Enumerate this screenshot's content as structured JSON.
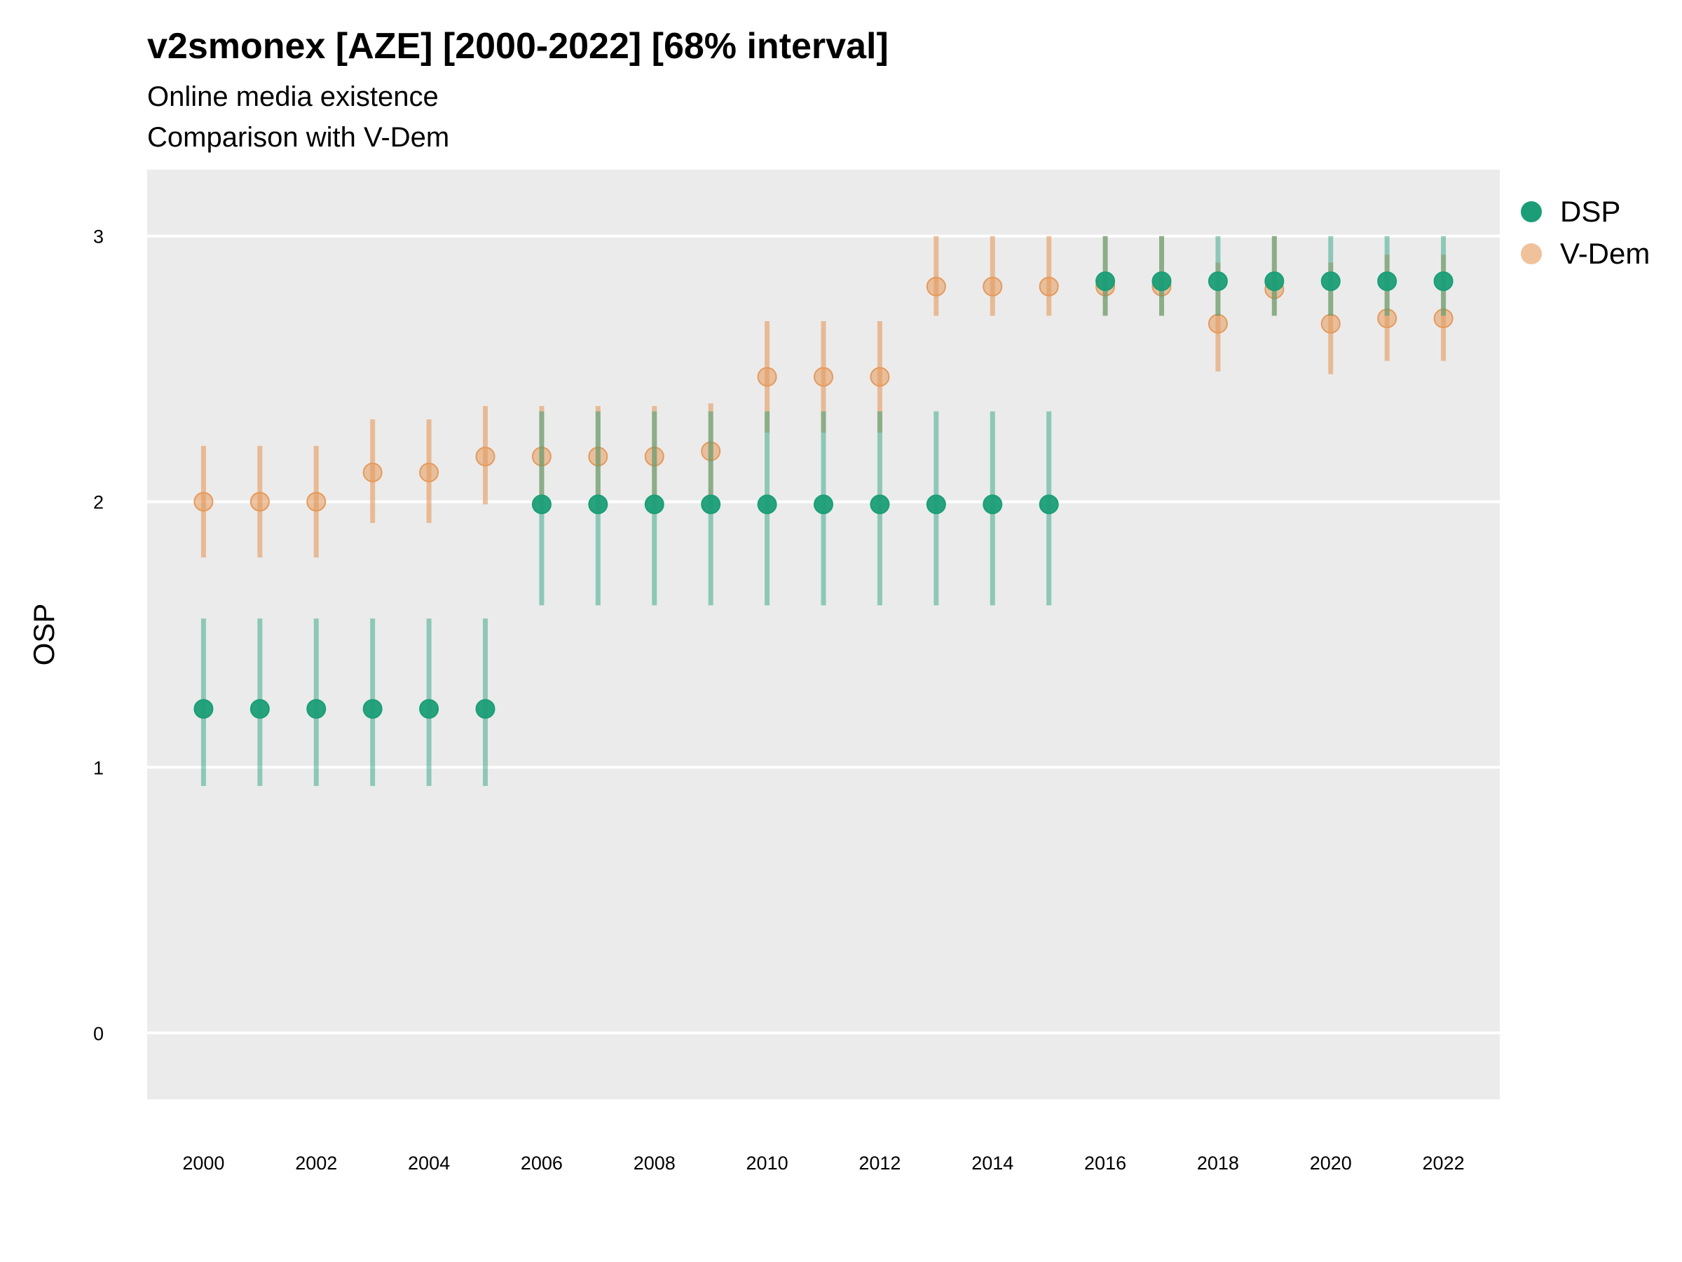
{
  "chart_data": {
    "type": "scatter",
    "title": "v2smonex [AZE] [2000-2022] [68% interval]",
    "subtitle": [
      "Online media existence",
      "Comparison with V-Dem"
    ],
    "xlabel": "",
    "ylabel": "OSP",
    "xlim": [
      1999,
      2023
    ],
    "ylim": [
      -0.25,
      3.25
    ],
    "x_ticks": [
      2000,
      2002,
      2004,
      2006,
      2008,
      2010,
      2012,
      2014,
      2016,
      2018,
      2020,
      2022
    ],
    "y_ticks": [
      0,
      1,
      2,
      3
    ],
    "grid": "horizontal",
    "legend_position": "right",
    "panel_color": "#ebebeb",
    "x": [
      2000,
      2001,
      2002,
      2003,
      2004,
      2005,
      2006,
      2007,
      2008,
      2009,
      2010,
      2011,
      2012,
      2013,
      2014,
      2015,
      2016,
      2017,
      2018,
      2019,
      2020,
      2021,
      2022
    ],
    "series": [
      {
        "name": "V-Dem",
        "color": "#e59a5c",
        "values": [
          2.0,
          2.0,
          2.0,
          2.11,
          2.11,
          2.17,
          2.17,
          2.17,
          2.17,
          2.19,
          2.47,
          2.47,
          2.47,
          2.81,
          2.81,
          2.81,
          2.81,
          2.81,
          2.67,
          2.8,
          2.67,
          2.69,
          2.69
        ],
        "lower": [
          1.79,
          1.79,
          1.79,
          1.92,
          1.92,
          1.99,
          1.99,
          1.99,
          1.99,
          1.99,
          2.26,
          2.26,
          2.26,
          2.7,
          2.7,
          2.7,
          2.7,
          2.7,
          2.49,
          2.7,
          2.48,
          2.53,
          2.53
        ],
        "upper": [
          2.21,
          2.21,
          2.21,
          2.31,
          2.31,
          2.36,
          2.36,
          2.36,
          2.36,
          2.37,
          2.68,
          2.68,
          2.68,
          3.0,
          3.0,
          3.0,
          3.0,
          3.0,
          2.9,
          3.0,
          2.9,
          2.93,
          2.93
        ]
      },
      {
        "name": "DSP",
        "color": "#1b9e77",
        "values": [
          1.22,
          1.22,
          1.22,
          1.22,
          1.22,
          1.22,
          1.99,
          1.99,
          1.99,
          1.99,
          1.99,
          1.99,
          1.99,
          1.99,
          1.99,
          1.99,
          2.83,
          2.83,
          2.83,
          2.83,
          2.83,
          2.83,
          2.83
        ],
        "lower": [
          0.93,
          0.93,
          0.93,
          0.93,
          0.93,
          0.93,
          1.61,
          1.61,
          1.61,
          1.61,
          1.61,
          1.61,
          1.61,
          1.61,
          1.61,
          1.61,
          2.7,
          2.7,
          2.7,
          2.7,
          2.7,
          2.7,
          2.7
        ],
        "upper": [
          1.56,
          1.56,
          1.56,
          1.56,
          1.56,
          1.56,
          2.34,
          2.34,
          2.34,
          2.34,
          2.34,
          2.34,
          2.34,
          2.34,
          2.34,
          2.34,
          3.0,
          3.0,
          3.0,
          3.0,
          3.0,
          3.0,
          3.0
        ]
      }
    ],
    "legend": [
      {
        "name": "DSP",
        "color": "#1b9e77"
      },
      {
        "name": "V-Dem",
        "color": "#e59a5c"
      }
    ]
  }
}
